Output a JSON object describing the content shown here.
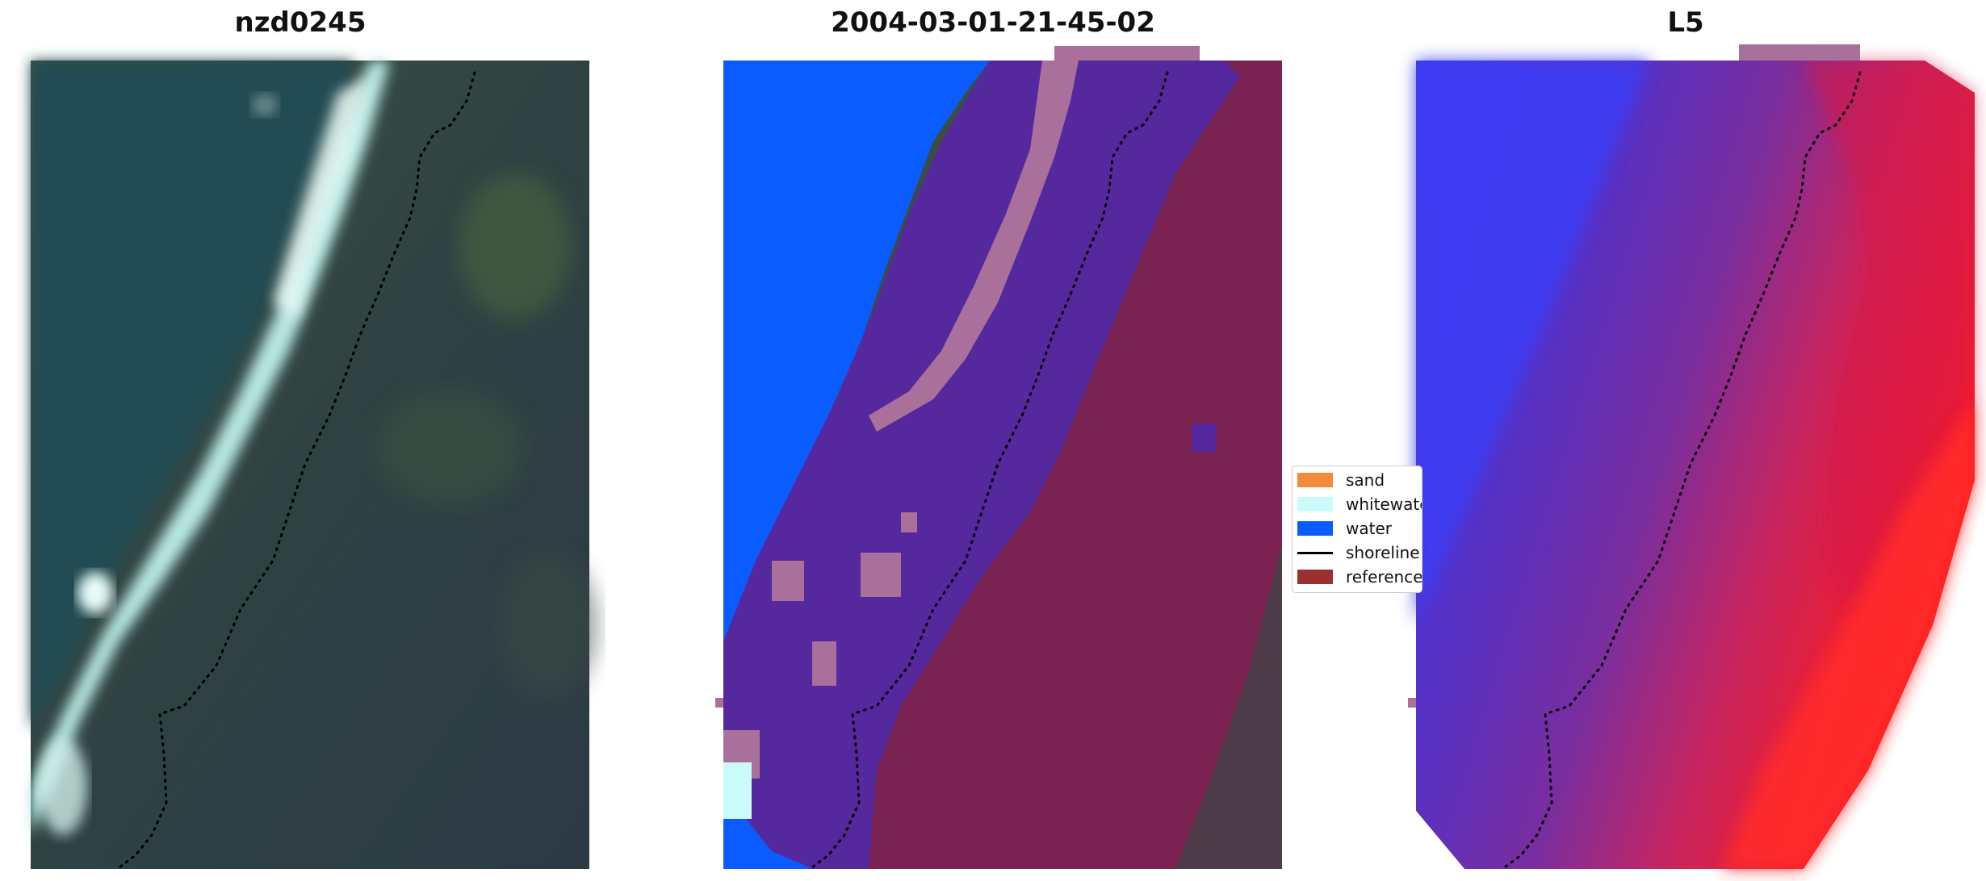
{
  "panels": [
    {
      "title": "nzd0245"
    },
    {
      "title": "2004-03-01-21-45-02"
    },
    {
      "title": "L5"
    }
  ],
  "legend": {
    "items": [
      {
        "label": "sand",
        "color": "#f58a3c",
        "kind": "patch"
      },
      {
        "label": "whitewater",
        "color": "#c9fbfb",
        "kind": "patch"
      },
      {
        "label": "water",
        "color": "#0a5cff",
        "kind": "patch"
      },
      {
        "label": "shoreline",
        "color": "#000000",
        "kind": "line"
      },
      {
        "label": "reference",
        "color": "#9c3030",
        "kind": "patch"
      }
    ]
  },
  "colors": {
    "water_blue": "#0a5cff",
    "surf_zone_purple": "#55289e",
    "land_maroon": "#7a2352",
    "pink_patch": "#a8709b",
    "l5_blue": "#3a3cf0",
    "l5_red": "#ff1e1e"
  }
}
